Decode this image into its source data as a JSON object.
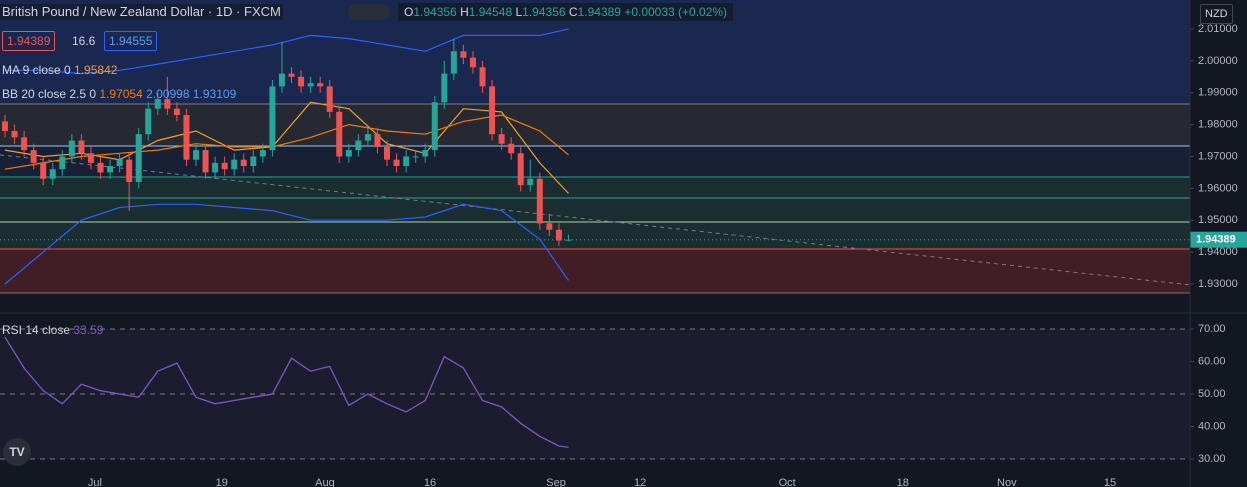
{
  "chart_data": [
    {
      "type": "candlestick",
      "title": "British Pound / New Zealand Dollar · 1D · FXCM",
      "currency": "NZD",
      "ohlc_labels": [
        "O",
        "H",
        "L",
        "C"
      ],
      "change": "+0.00033 (+0.02%)",
      "bid": 1.94389,
      "spread": 16.6,
      "ask": 1.94555,
      "up_color": "#26a69a",
      "down_color": "#ef5350",
      "xlim": [
        -0.524,
        124.08
      ],
      "ylim": [
        1.9212,
        2.0191
      ],
      "yticks": [
        {
          "value": 1.93,
          "label": "1.93000"
        },
        {
          "value": 1.94,
          "label": "1.94000"
        },
        {
          "value": 1.95,
          "label": "1.95000"
        },
        {
          "value": 1.96,
          "label": "1.96000"
        },
        {
          "value": 1.97,
          "label": "1.97000"
        },
        {
          "value": 1.98,
          "label": "1.98000"
        },
        {
          "value": 1.99,
          "label": "1.99000"
        },
        {
          "value": 2.0,
          "label": "2.00000"
        },
        {
          "value": 2.01,
          "label": "2.01000"
        }
      ],
      "open": [
        1.981,
        1.978,
        1.976,
        1.972,
        1.968,
        1.963,
        1.966,
        1.97,
        1.975,
        1.971,
        1.968,
        1.965,
        1.967,
        1.969,
        1.962,
        1.977,
        1.985,
        1.988,
        1.985,
        1.983,
        1.969,
        1.972,
        1.965,
        1.968,
        1.966,
        1.969,
        1.967,
        1.97,
        1.972,
        1.992,
        1.996,
        1.995,
        1.992,
        1.993,
        1.992,
        1.984,
        1.97,
        1.972,
        1.975,
        1.977,
        1.973,
        1.969,
        1.967,
        1.97,
        1.97,
        1.972,
        1.987,
        1.996,
        2.003,
        2.001,
        1.998,
        1.992,
        1.977,
        1.974,
        1.971,
        1.961,
        1.963,
        1.949,
        1.947,
        1.94356
      ],
      "high": [
        1.983,
        1.98,
        1.978,
        1.974,
        1.97,
        1.968,
        1.972,
        1.977,
        1.977,
        1.973,
        1.97,
        1.969,
        1.971,
        1.971,
        1.979,
        1.987,
        1.99,
        1.995,
        1.987,
        1.985,
        1.974,
        1.974,
        1.97,
        1.97,
        1.971,
        1.971,
        1.972,
        1.974,
        1.994,
        2.006,
        1.998,
        1.997,
        1.995,
        1.995,
        1.994,
        1.986,
        1.974,
        1.977,
        1.979,
        1.979,
        1.975,
        1.971,
        1.972,
        1.972,
        1.974,
        1.989,
        2.0,
        2.007,
        2.005,
        2.003,
        2.0,
        1.994,
        1.979,
        1.976,
        1.973,
        1.969,
        1.965,
        1.952,
        1.949,
        1.94548
      ],
      "low": [
        1.976,
        1.974,
        1.97,
        1.966,
        1.961,
        1.961,
        1.964,
        1.968,
        1.969,
        1.966,
        1.963,
        1.963,
        1.965,
        1.953,
        1.96,
        1.975,
        1.983,
        1.983,
        1.981,
        1.967,
        1.967,
        1.963,
        1.963,
        1.964,
        1.964,
        1.965,
        1.965,
        1.968,
        1.97,
        1.99,
        1.993,
        1.99,
        1.99,
        1.99,
        1.982,
        1.968,
        1.968,
        1.97,
        1.973,
        1.971,
        1.967,
        1.965,
        1.965,
        1.968,
        1.968,
        1.97,
        1.985,
        1.994,
        1.999,
        1.996,
        1.99,
        1.975,
        1.972,
        1.969,
        1.959,
        1.959,
        1.947,
        1.945,
        1.942,
        1.94356
      ],
      "close": [
        1.978,
        1.976,
        1.972,
        1.968,
        1.963,
        1.966,
        1.97,
        1.975,
        1.971,
        1.968,
        1.965,
        1.967,
        1.969,
        1.962,
        1.977,
        1.985,
        1.988,
        1.985,
        1.983,
        1.969,
        1.972,
        1.965,
        1.968,
        1.966,
        1.969,
        1.967,
        1.97,
        1.972,
        1.992,
        1.996,
        1.995,
        1.992,
        1.993,
        1.992,
        1.984,
        1.97,
        1.972,
        1.975,
        1.977,
        1.973,
        1.969,
        1.967,
        1.97,
        1.97,
        1.972,
        1.987,
        1.996,
        2.003,
        2.001,
        1.998,
        1.992,
        1.977,
        1.974,
        1.971,
        1.961,
        1.963,
        1.949,
        1.947,
        1.9436,
        1.94389
      ],
      "zones": [
        {
          "from": 1.98647,
          "to": 2.0191,
          "color": "#1c2c58"
        },
        {
          "from": 1.9733,
          "to": 1.98647,
          "color": "#2a2d35"
        },
        {
          "from": 1.96357,
          "to": 1.9733,
          "color": "#1a2238"
        },
        {
          "from": 1.94098,
          "to": 1.96357,
          "color": "#1c3133"
        },
        {
          "from": 1.92718,
          "to": 1.94098,
          "color": "#4a1f27"
        }
      ],
      "levels": [
        {
          "value": 1.98647,
          "color": "#787b86"
        },
        {
          "value": 1.9733,
          "color": "#90caf9"
        },
        {
          "value": 1.96357,
          "color": "#26a69a"
        },
        {
          "value": 1.95698,
          "color": "#26a69a"
        },
        {
          "value": 1.94945,
          "color": "#a5d6a7"
        },
        {
          "value": 1.94098,
          "color": "#ef5350"
        },
        {
          "value": 1.92718,
          "color": "#787b86"
        }
      ],
      "trend_line": {
        "x": [
          -0.524,
          124.08
        ],
        "values": [
          1.9705,
          1.9297
        ],
        "color": "#787b86"
      },
      "overlays": [
        {
          "label": "MA 9 close 0",
          "lines": [
            {
              "color": "#f0a030",
              "x": [
                0,
                4,
                8,
                12,
                16,
                20,
                24,
                28,
                32,
                36,
                40,
                44,
                48,
                52,
                56,
                59
              ],
              "values": [
                1.972,
                1.97,
                1.971,
                1.969,
                1.975,
                1.978,
                1.972,
                1.973,
                1.987,
                1.985,
                1.974,
                1.971,
                1.985,
                1.984,
                1.968,
                1.95842
              ]
            }
          ]
        },
        {
          "label": "BB 20 close 2.5 0",
          "lines": [
            {
              "color": "#f57c00",
              "x": [
                0,
                4,
                8,
                12,
                16,
                20,
                24,
                28,
                32,
                36,
                40,
                44,
                48,
                52,
                56,
                59
              ],
              "values": [
                1.966,
                1.968,
                1.97,
                1.971,
                1.972,
                1.974,
                1.973,
                1.973,
                1.976,
                1.98,
                1.978,
                1.977,
                1.981,
                1.983,
                1.978,
                1.97054
              ]
            },
            {
              "color": "#2962ff",
              "x": [
                0,
                4,
                8,
                12,
                16,
                20,
                24,
                28,
                32,
                36,
                40,
                44,
                48,
                52,
                56,
                59
              ],
              "values": [
                1.997,
                1.997,
                1.996,
                1.997,
                1.999,
                2.001,
                2.003,
                2.005,
                2.008,
                2.007,
                2.005,
                2.003,
                2.008,
                2.008,
                2.008,
                2.00998
              ]
            },
            {
              "color": "#2962ff",
              "x": [
                0,
                4,
                8,
                12,
                16,
                20,
                24,
                28,
                32,
                36,
                40,
                44,
                48,
                52,
                56,
                59
              ],
              "values": [
                1.93,
                1.94,
                1.95,
                1.954,
                1.955,
                1.955,
                1.954,
                1.953,
                1.95,
                1.95,
                1.95,
                1.951,
                1.955,
                1.953,
                1.944,
                1.93109
              ]
            }
          ]
        }
      ]
    },
    {
      "type": "line",
      "title": "RSI 14 close",
      "color": "#7e57c2",
      "xlim": [
        -0.524,
        124.08
      ],
      "ylim": [
        21.4,
        74.6
      ],
      "yticks": [
        {
          "value": 30,
          "label": "30.00"
        },
        {
          "value": 40,
          "label": "40.00"
        },
        {
          "value": 50,
          "label": "50.00"
        },
        {
          "value": 60,
          "label": "60.00"
        },
        {
          "value": 70,
          "label": "70.00"
        }
      ],
      "bands": [
        70,
        50,
        30
      ],
      "xticks": [
        {
          "value": 9.42,
          "label": "Jul"
        },
        {
          "value": 22.7,
          "label": "19"
        },
        {
          "value": 33.5,
          "label": "Aug"
        },
        {
          "value": 44.5,
          "label": "16"
        },
        {
          "value": 57.7,
          "label": "Sep"
        },
        {
          "value": 66.5,
          "label": "12"
        },
        {
          "value": 81.9,
          "label": "Oct"
        },
        {
          "value": 94.0,
          "label": "18"
        },
        {
          "value": 104.9,
          "label": "Nov"
        },
        {
          "value": 115.7,
          "label": "15"
        }
      ],
      "x": [
        0,
        2,
        4,
        6,
        8,
        10,
        12,
        14,
        16,
        18,
        20,
        22,
        24,
        26,
        28,
        30,
        32,
        34,
        36,
        38,
        40,
        42,
        44,
        46,
        48,
        50,
        52,
        54,
        56,
        58,
        59
      ],
      "values": [
        67.5,
        58,
        51,
        47,
        53,
        51,
        50,
        49,
        57,
        59.5,
        49,
        47,
        48,
        49,
        50,
        61,
        57,
        58.5,
        46.5,
        50,
        47,
        44.5,
        48,
        61.5,
        58,
        48,
        46,
        41,
        37,
        34,
        33.59
      ]
    }
  ]
}
